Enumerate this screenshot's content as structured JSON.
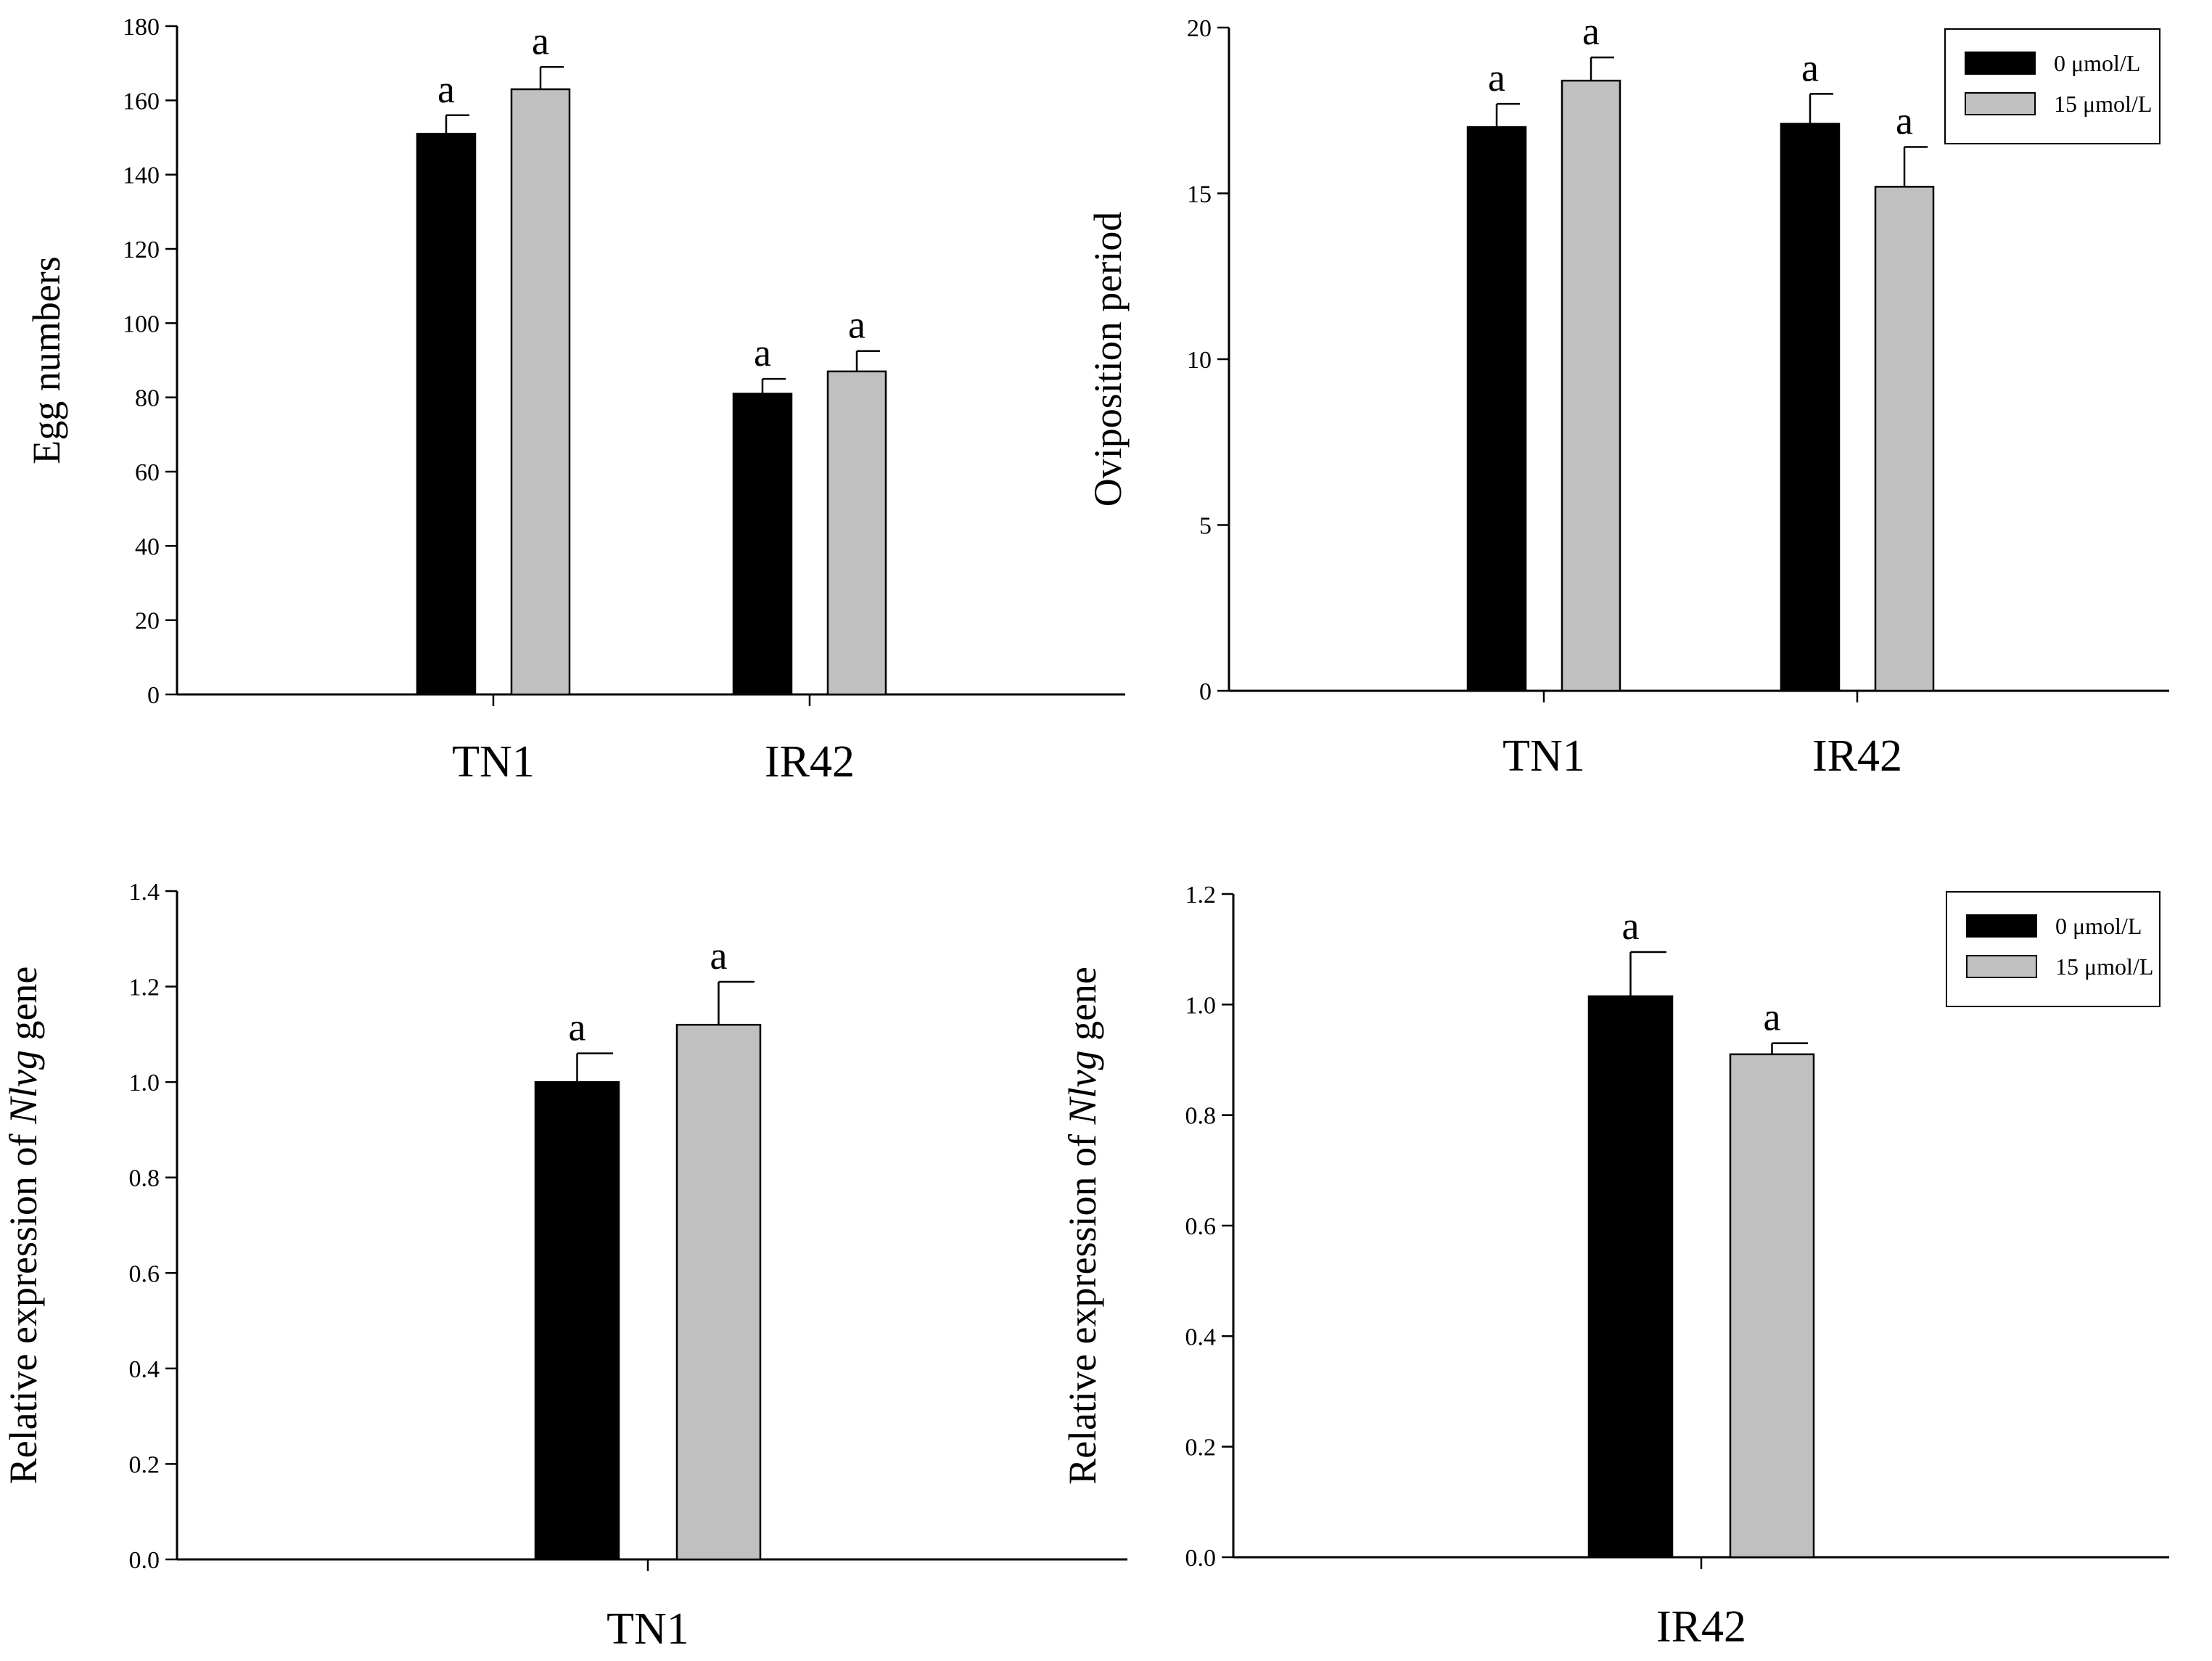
{
  "legend": {
    "entries": [
      {
        "label": "0 μmol/L",
        "color": "#000000"
      },
      {
        "label": "15 μmol/L",
        "color": "#c0c0c0"
      }
    ]
  },
  "chart_data": [
    {
      "type": "bar",
      "ylabel": "Egg numbers",
      "ylim": [
        0,
        180
      ],
      "yticks": [
        "0",
        "20",
        "40",
        "60",
        "80",
        "100",
        "120",
        "140",
        "160",
        "180"
      ],
      "categories": [
        "TN1",
        "IR42"
      ],
      "series": [
        {
          "name": "0 μmol/L",
          "values": [
            151,
            81
          ],
          "errors": [
            5,
            4
          ],
          "labels": [
            "a",
            "a"
          ]
        },
        {
          "name": "15 μmol/L",
          "values": [
            163,
            87
          ],
          "errors": [
            6,
            5.5
          ],
          "labels": [
            "a",
            "a"
          ]
        }
      ]
    },
    {
      "type": "bar",
      "ylabel": "Oviposition period",
      "ylim": [
        0,
        20
      ],
      "yticks": [
        "0",
        "5",
        "10",
        "15",
        "20"
      ],
      "categories": [
        "TN1",
        "IR42"
      ],
      "legend_position": "top-right",
      "series": [
        {
          "name": "0 μmol/L",
          "values": [
            17.0,
            17.1
          ],
          "errors": [
            0.7,
            0.9
          ],
          "labels": [
            "a",
            "a"
          ]
        },
        {
          "name": "15 μmol/L",
          "values": [
            18.4,
            15.2
          ],
          "errors": [
            0.7,
            1.2
          ],
          "labels": [
            "a",
            "a"
          ]
        }
      ]
    },
    {
      "type": "bar",
      "ylabel": "Relative expression of Nlvg gene",
      "ylabel_parts": [
        "Relative expression of ",
        "Nlvg",
        " gene"
      ],
      "ylim": [
        0,
        1.4
      ],
      "yticks": [
        "0.0",
        "0.2",
        "0.4",
        "0.6",
        "0.8",
        "1.0",
        "1.2",
        "1.4"
      ],
      "categories": [
        "TN1"
      ],
      "series": [
        {
          "name": "0 μmol/L",
          "values": [
            1.0
          ],
          "errors": [
            0.06
          ],
          "labels": [
            "a"
          ]
        },
        {
          "name": "15 μmol/L",
          "values": [
            1.12
          ],
          "errors": [
            0.09
          ],
          "labels": [
            "a"
          ]
        }
      ]
    },
    {
      "type": "bar",
      "ylabel": "Relative expression of Nlvg gene",
      "ylabel_parts": [
        "Relative expression of ",
        "Nlvg",
        " gene"
      ],
      "ylim": [
        0,
        1.2
      ],
      "yticks": [
        "0.0",
        "0.2",
        "0.4",
        "0.6",
        "0.8",
        "1.0",
        "1.2"
      ],
      "categories": [
        "IR42"
      ],
      "legend_position": "top-right",
      "series": [
        {
          "name": "0 μmol/L",
          "values": [
            1.015
          ],
          "errors": [
            0.08
          ],
          "labels": [
            "a"
          ]
        },
        {
          "name": "15 μmol/L",
          "values": [
            0.91
          ],
          "errors": [
            0.02
          ],
          "labels": [
            "a"
          ]
        }
      ]
    }
  ]
}
